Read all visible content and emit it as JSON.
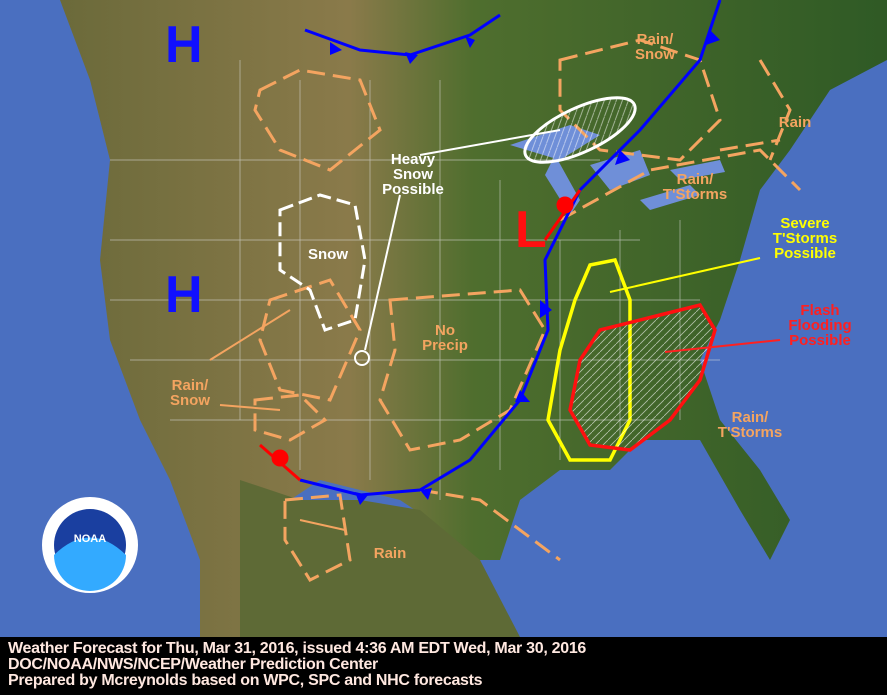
{
  "map": {
    "highs": [
      "H",
      "H"
    ],
    "low": "L",
    "labels": {
      "rain_snow_ne": "Rain/ Snow",
      "rain_ne": "Rain",
      "heavy_snow": "Heavy Snow Possible",
      "snow": "Snow",
      "rain_tstorms_east": "Rain/ T'Storms",
      "severe": "Severe T'Storms Possible",
      "flash_flood": "Flash Flooding Possible",
      "no_precip": "No Precip",
      "rain_snow_sw": "Rain/ Snow",
      "rain_tstorms_se": "Rain/ T'Storms",
      "rain_sw": "Rain"
    },
    "logo": "NOAA",
    "colors": {
      "ocean": "#4a6fc0",
      "land": "#3d6b2a",
      "cold_front": "#0000ff",
      "warm_front": "#ff0000",
      "precip_outline": "#f4a460",
      "severe": "#ffff00",
      "flood": "#ff0000"
    }
  },
  "footer": {
    "line1": "Weather Forecast for Thu, Mar 31, 2016, issued 4:36 AM EDT Wed, Mar 30, 2016",
    "line2": "DOC/NOAA/NWS/NCEP/Weather Prediction Center",
    "line3": "Prepared by Mcreynolds based on WPC, SPC and NHC forecasts"
  }
}
